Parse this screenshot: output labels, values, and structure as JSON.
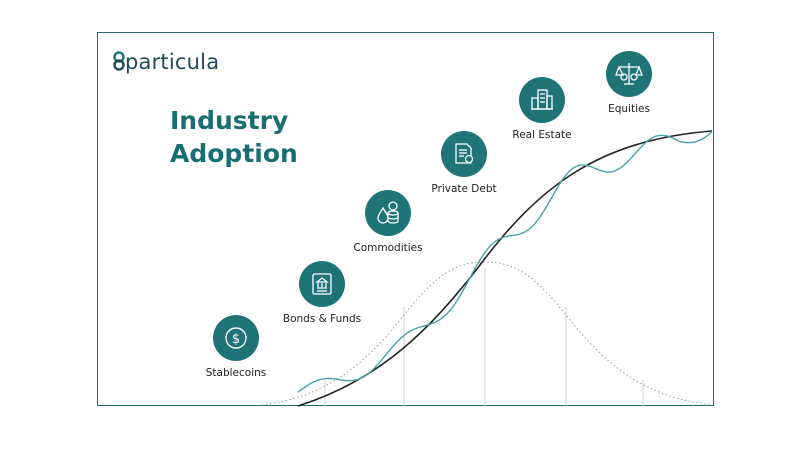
{
  "brand": {
    "name": "particula",
    "color": "#1f4b57"
  },
  "title": {
    "line1": "Industry",
    "line2": "Adoption",
    "color": "#1a6e72"
  },
  "stages": [
    {
      "label": "Stablecoins",
      "icon": "dollar-coin-icon"
    },
    {
      "label": "Bonds & Funds",
      "icon": "bank-certificate-icon"
    },
    {
      "label": "Commodities",
      "icon": "oil-drop-coins-icon"
    },
    {
      "label": "Private Debt",
      "icon": "contract-document-icon"
    },
    {
      "label": "Real Estate",
      "icon": "buildings-icon"
    },
    {
      "label": "Equities",
      "icon": "balance-scale-icon"
    }
  ],
  "colors": {
    "accent": "#1f7477",
    "frame": "#1f6d6f",
    "wave": "#4aa3a6",
    "s_curve": "#222222",
    "bell": "#999999"
  }
}
